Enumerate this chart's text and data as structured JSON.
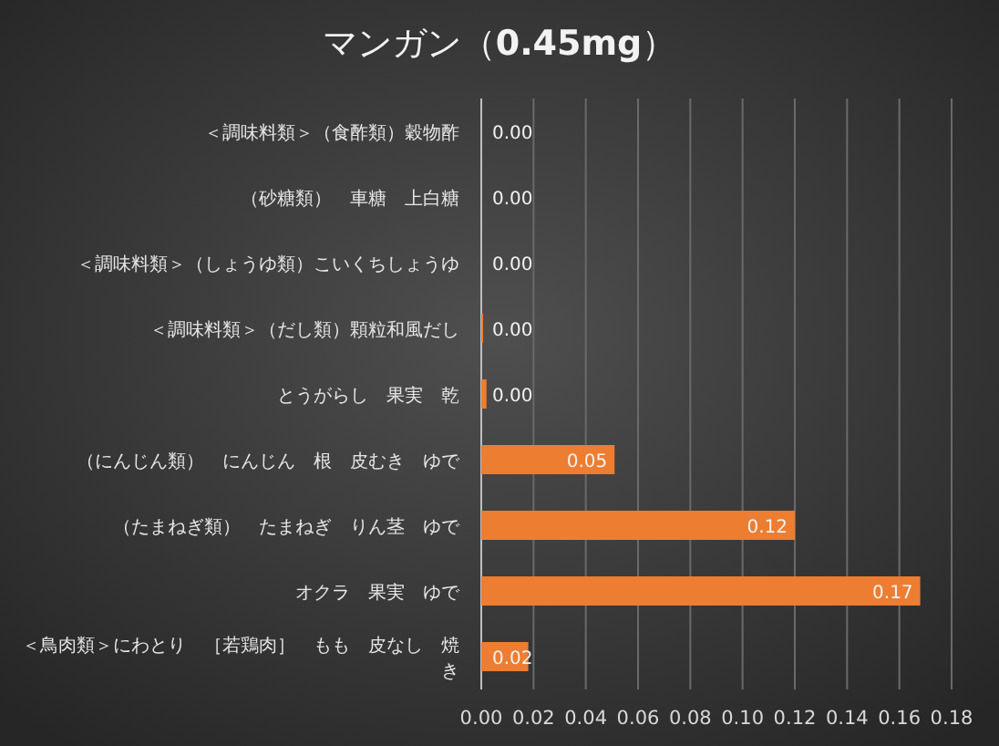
{
  "chart_data": {
    "type": "bar",
    "orientation": "horizontal",
    "title": "マンガン（**0.45mg**）",
    "categories": [
      "＜調味料類＞（食酢類）穀物酢",
      "（砂糖類）　車糖　上白糖",
      "＜調味料類＞（しょうゆ類）こいくちしょうゆ",
      "＜調味料類＞（だし類）顆粒和風だし",
      "とうがらし　果実　乾",
      "（にんじん類）　にんじん　根　皮むき　ゆで",
      "（たまねぎ類）　たまねぎ　りん茎　ゆで",
      "オクラ　果実　ゆで",
      "＜鳥肉類＞にわとり　［若鶏肉］　もも　皮なし　焼き"
    ],
    "values": [
      0,
      0,
      0,
      0.0007,
      0.002,
      0.051,
      0.12,
      0.168,
      0.018
    ],
    "value_labels": [
      "0.00",
      "0.00",
      "0.00",
      "0.00",
      "0.00",
      "0.05",
      "0.12",
      "0.17",
      "0.02"
    ],
    "color": "#ed7d31",
    "xlim": [
      0,
      0.18
    ],
    "xticks": [
      "0.00",
      "0.02",
      "0.04",
      "0.06",
      "0.08",
      "0.10",
      "0.12",
      "0.14",
      "0.16",
      "0.18"
    ],
    "grid": "x"
  }
}
